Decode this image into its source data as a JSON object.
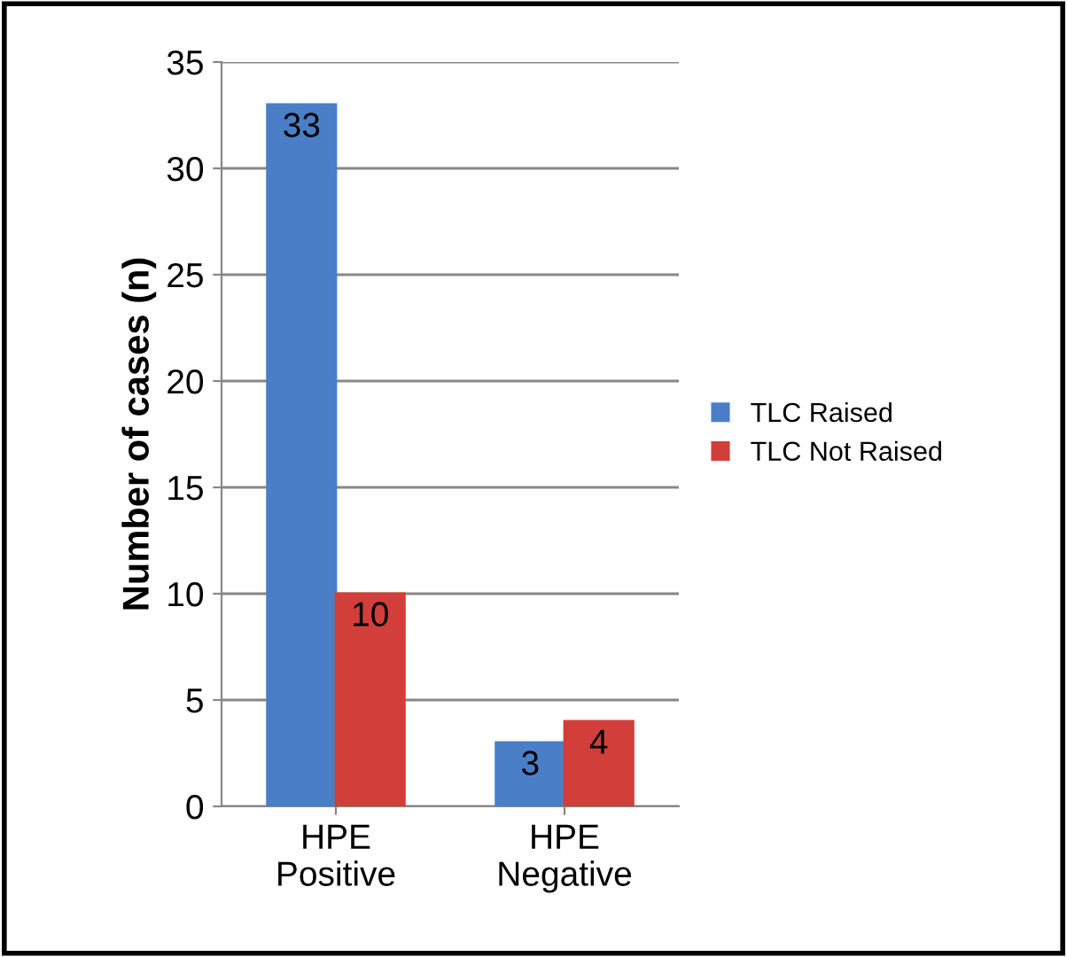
{
  "chart_data": {
    "type": "bar",
    "ylabel": "Number of cases (n)",
    "categories": [
      "HPE Positive",
      "HPE Negative"
    ],
    "series": [
      {
        "name": "TLC Raised",
        "color": "#4a7fc8",
        "values": [
          33,
          3
        ]
      },
      {
        "name": "TLC Not Raised",
        "color": "#d23f3a",
        "values": [
          10,
          4
        ]
      }
    ],
    "ylim": [
      0,
      35
    ],
    "yticks": [
      0,
      5,
      10,
      15,
      20,
      25,
      30,
      35
    ],
    "grid": "y",
    "legend": "right",
    "data_labels": true
  }
}
